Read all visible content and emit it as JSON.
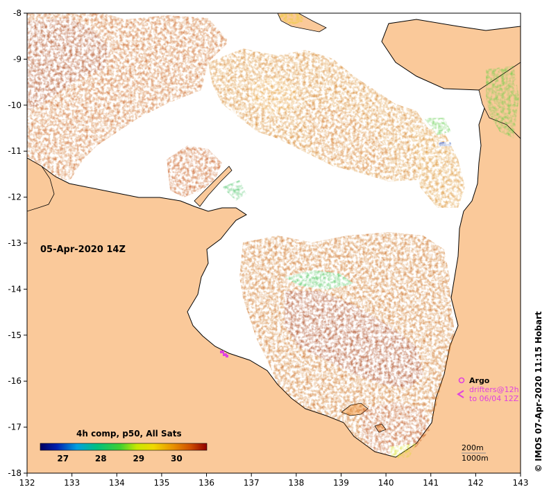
{
  "map": {
    "date_label": "05-Apr-2020 14Z",
    "x_ticks": [
      "132",
      "133",
      "134",
      "135",
      "136",
      "137",
      "138",
      "139",
      "140",
      "141",
      "142",
      "143"
    ],
    "y_ticks": [
      "-8",
      "-9",
      "-10",
      "-11",
      "-12",
      "-13",
      "-14",
      "-15",
      "-16",
      "-17",
      "-18"
    ],
    "x_range": [
      132,
      143
    ],
    "y_range": [
      -18,
      -8
    ],
    "colors": {
      "land": "#fac99a",
      "ocean_nodata": "#ffffff",
      "coast": "#000000"
    }
  },
  "colorbar": {
    "title": "4h comp, p50, All Sats",
    "ticks": [
      "27",
      "28",
      "29",
      "30"
    ],
    "range": [
      26.4,
      30.8
    ]
  },
  "legend": {
    "argo_label": "Argo",
    "drifters_label": "drifters@12h",
    "drifters_period": "to 06/04 12Z",
    "contour_200": "200m",
    "contour_1000": "1000m",
    "marker_color": "#e040e0"
  },
  "credit": "© IMOS 07-Apr-2020 11:15 Hobart"
}
